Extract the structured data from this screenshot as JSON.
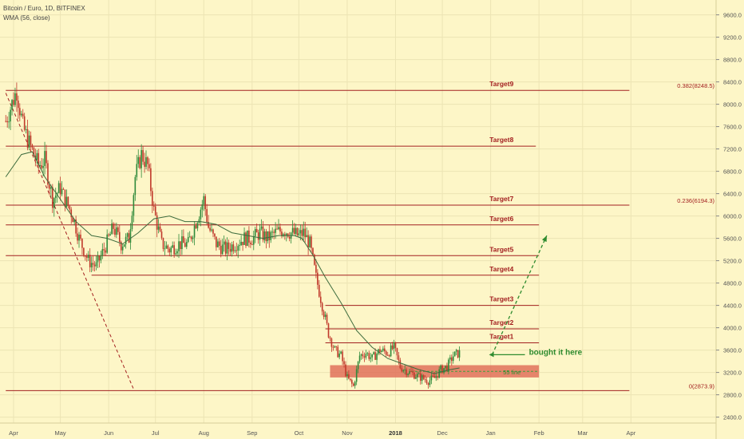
{
  "header": {
    "symbol": "Bitcoin / Euro, 1D, BITFINEX",
    "indicator": "WMA (56, close)"
  },
  "chart_data": {
    "type": "candlestick",
    "ylim": [
      2300,
      9800
    ],
    "y_ticks": [
      "9600.0",
      "9200.0",
      "8800.0",
      "8400.0",
      "8000.0",
      "7600.0",
      "7200.0",
      "6800.0",
      "6400.0",
      "6000.0",
      "5600.0",
      "5200.0",
      "4800.0",
      "4400.0",
      "4000.0",
      "3600.0",
      "3200.0",
      "2800.0",
      "2400.0"
    ],
    "y_tick_values": [
      9600,
      9200,
      8800,
      8400,
      8000,
      7600,
      7200,
      6800,
      6400,
      6000,
      5600,
      5200,
      4800,
      4400,
      4000,
      3600,
      3200,
      2800,
      2400
    ],
    "x_ticks": [
      "Apr",
      "May",
      "Jun",
      "Jul",
      "Aug",
      "Sep",
      "Oct",
      "Nov",
      "2018",
      "Dec",
      "Jan",
      "Feb",
      "Mar",
      "Apr"
    ],
    "x_tick_days": [
      0,
      30,
      61,
      91,
      122,
      153,
      183,
      214,
      245,
      275,
      306,
      337,
      365,
      396
    ],
    "x_tick_bold": [
      false,
      false,
      false,
      false,
      false,
      false,
      false,
      false,
      true,
      false,
      false,
      false,
      false,
      false
    ],
    "grid": true,
    "colors": {
      "up": "#2f8a3a",
      "down": "#c0392b",
      "level": "#a32020",
      "wma": "#3d6b3d",
      "zone": "#e0715a",
      "arrow": "#2e8b2e",
      "background": "#fdf6c7"
    },
    "levels": [
      {
        "name": "Target9",
        "value": 8248.5,
        "day_start": -5,
        "day_end": 395,
        "right_label": "0.382(8248.5)"
      },
      {
        "name": "Target8",
        "value": 7250,
        "day_start": -5,
        "day_end": 335
      },
      {
        "name": "Target7",
        "value": 6194.3,
        "day_start": -5,
        "day_end": 395,
        "right_label": "0.236(6194.3)"
      },
      {
        "name": "Target6",
        "value": 5840,
        "day_start": -5,
        "day_end": 337
      },
      {
        "name": "Target5",
        "value": 5290,
        "day_start": -5,
        "day_end": 337
      },
      {
        "name": "Target4",
        "value": 4940,
        "day_start": 50,
        "day_end": 337
      },
      {
        "name": "Target3",
        "value": 4400,
        "day_start": 200,
        "day_end": 337
      },
      {
        "name": "Target2",
        "value": 3980,
        "day_start": 200,
        "day_end": 337
      },
      {
        "name": "Target1",
        "value": 3730,
        "day_start": 200,
        "day_end": 337
      },
      {
        "name": "",
        "value": 2873.9,
        "day_start": -5,
        "day_end": 395,
        "right_label": "0(2873.9)"
      }
    ],
    "support_zone": {
      "low": 3110,
      "high": 3330,
      "day_start": 203,
      "day_end": 337,
      "label": "55 line",
      "line_value": 3220
    },
    "trend_line": {
      "day_start": -5,
      "value_start": 8200,
      "day_end": 77,
      "value_end": 2900
    },
    "annotation": {
      "text": "bought it here",
      "day": 307,
      "value": 3560
    },
    "projection_arrow": {
      "day_start": 307,
      "value_start": 3520,
      "day_end": 342,
      "value_end": 5650
    },
    "anchors": [
      [
        -5,
        7700
      ],
      [
        2,
        8250
      ],
      [
        6,
        7600
      ],
      [
        10,
        7300
      ],
      [
        16,
        6900
      ],
      [
        20,
        7000
      ],
      [
        25,
        6300
      ],
      [
        30,
        6500
      ],
      [
        33,
        6300
      ],
      [
        38,
        6000
      ],
      [
        42,
        5600
      ],
      [
        48,
        5200
      ],
      [
        53,
        5100
      ],
      [
        58,
        5400
      ],
      [
        64,
        5800
      ],
      [
        69,
        5500
      ],
      [
        74,
        5600
      ],
      [
        78,
        6700
      ],
      [
        82,
        7100
      ],
      [
        86,
        6900
      ],
      [
        90,
        6100
      ],
      [
        95,
        5500
      ],
      [
        100,
        5400
      ],
      [
        106,
        5500
      ],
      [
        112,
        5500
      ],
      [
        117,
        5900
      ],
      [
        122,
        6300
      ],
      [
        125,
        5800
      ],
      [
        130,
        5500
      ],
      [
        136,
        5400
      ],
      [
        142,
        5500
      ],
      [
        148,
        5600
      ],
      [
        153,
        5600
      ],
      [
        158,
        5700
      ],
      [
        163,
        5600
      ],
      [
        168,
        5700
      ],
      [
        173,
        5750
      ],
      [
        178,
        5700
      ],
      [
        183,
        5650
      ],
      [
        186,
        5700
      ],
      [
        190,
        5500
      ],
      [
        194,
        4900
      ],
      [
        198,
        4400
      ],
      [
        202,
        3900
      ],
      [
        206,
        3600
      ],
      [
        210,
        3500
      ],
      [
        214,
        3100
      ],
      [
        218,
        2950
      ],
      [
        222,
        3500
      ],
      [
        226,
        3550
      ],
      [
        230,
        3450
      ],
      [
        235,
        3600
      ],
      [
        240,
        3550
      ],
      [
        244,
        3650
      ],
      [
        248,
        3300
      ],
      [
        254,
        3200
      ],
      [
        258,
        3150
      ],
      [
        262,
        3100
      ],
      [
        266,
        3050
      ],
      [
        270,
        3100
      ],
      [
        274,
        3250
      ],
      [
        278,
        3300
      ],
      [
        282,
        3500
      ],
      [
        286,
        3550
      ]
    ],
    "wma_anchors": [
      [
        -5,
        6700
      ],
      [
        5,
        7100
      ],
      [
        12,
        7150
      ],
      [
        20,
        6700
      ],
      [
        30,
        6300
      ],
      [
        40,
        5900
      ],
      [
        50,
        5650
      ],
      [
        60,
        5600
      ],
      [
        70,
        5500
      ],
      [
        80,
        5700
      ],
      [
        90,
        5950
      ],
      [
        100,
        6000
      ],
      [
        110,
        5900
      ],
      [
        120,
        5900
      ],
      [
        130,
        5850
      ],
      [
        140,
        5700
      ],
      [
        150,
        5650
      ],
      [
        160,
        5600
      ],
      [
        170,
        5650
      ],
      [
        180,
        5650
      ],
      [
        185,
        5600
      ],
      [
        192,
        5300
      ],
      [
        200,
        4900
      ],
      [
        210,
        4450
      ],
      [
        220,
        3950
      ],
      [
        230,
        3650
      ],
      [
        240,
        3450
      ],
      [
        250,
        3350
      ],
      [
        260,
        3250
      ],
      [
        270,
        3180
      ],
      [
        280,
        3250
      ],
      [
        286,
        3280
      ]
    ]
  }
}
